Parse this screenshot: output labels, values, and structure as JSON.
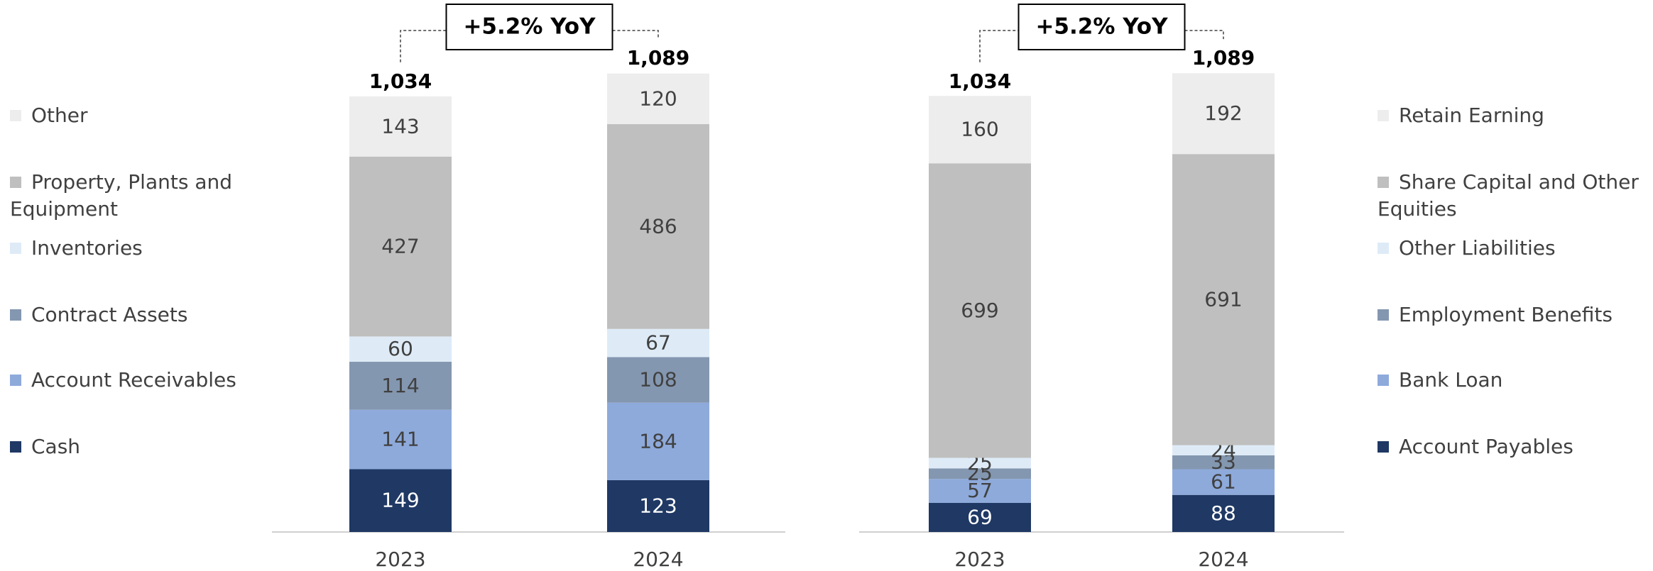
{
  "chart_data": [
    {
      "type": "stacked_bar",
      "annotation": "+5.2% YoY",
      "categories": [
        "2023",
        "2024"
      ],
      "totals": [
        1034,
        1089
      ],
      "total_labels": [
        "1,034",
        "1,089"
      ],
      "series": [
        {
          "name": "Cash",
          "color": "#1f3864",
          "values": [
            149,
            123
          ]
        },
        {
          "name": "Account Receivables",
          "color": "#8eaadb",
          "values": [
            141,
            184
          ]
        },
        {
          "name": "Contract Assets",
          "color": "#8497b0",
          "values": [
            114,
            108
          ]
        },
        {
          "name": "Inventories",
          "color": "#deebf7",
          "values": [
            60,
            67
          ]
        },
        {
          "name": "Property, Plants and Equipment",
          "color": "#bfbfbf",
          "values": [
            427,
            486
          ]
        },
        {
          "name": "Other",
          "color": "#ededed",
          "values": [
            143,
            120
          ]
        }
      ]
    },
    {
      "type": "stacked_bar",
      "annotation": "+5.2% YoY",
      "categories": [
        "2023",
        "2024"
      ],
      "totals": [
        1034,
        1089
      ],
      "total_labels": [
        "1,034",
        "1,089"
      ],
      "series": [
        {
          "name": "Account Payables",
          "color": "#1f3864",
          "values": [
            69,
            88
          ]
        },
        {
          "name": "Bank Loan",
          "color": "#8eaadb",
          "values": [
            57,
            61
          ]
        },
        {
          "name": "Employment Benefits",
          "color": "#8497b0",
          "values": [
            25,
            33
          ]
        },
        {
          "name": "Other Liabilities",
          "color": "#deebf7",
          "values": [
            25,
            24
          ]
        },
        {
          "name": "Share Capital and Other Equities",
          "color": "#bfbfbf",
          "values": [
            699,
            691
          ]
        },
        {
          "name": "Retain Earning",
          "color": "#ededed",
          "values": [
            160,
            192
          ]
        }
      ]
    }
  ]
}
